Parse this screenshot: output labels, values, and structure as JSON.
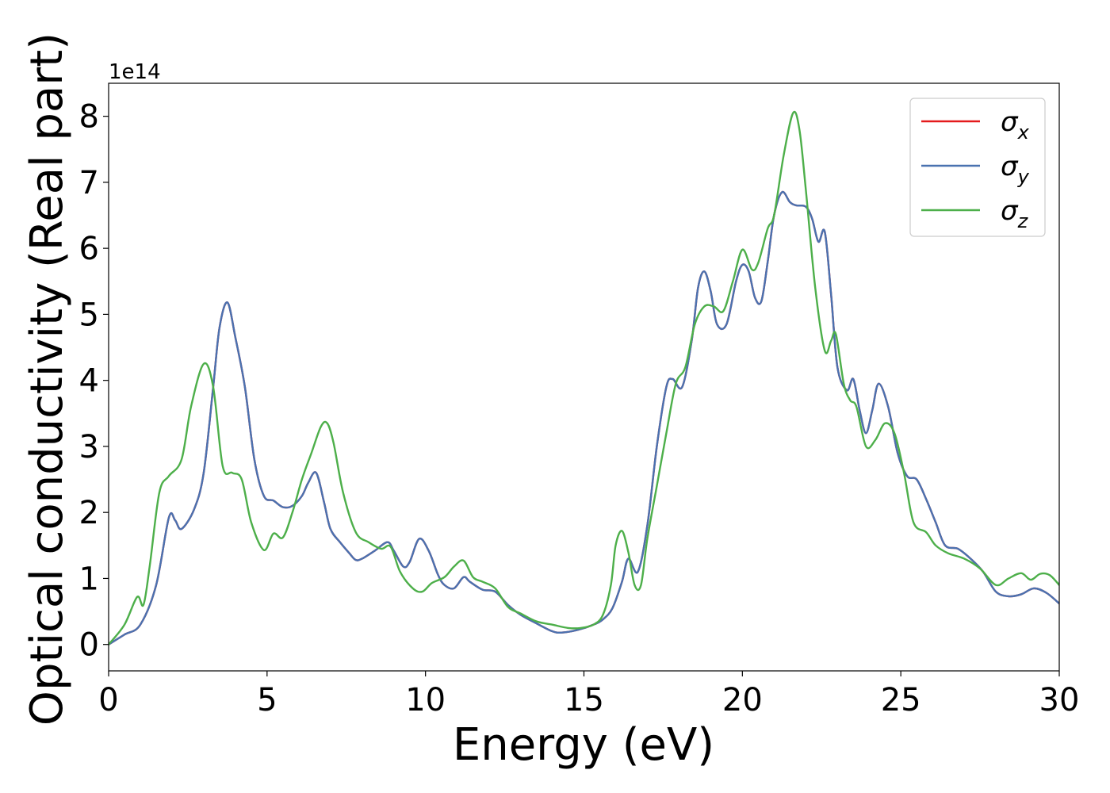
{
  "chart_data": {
    "type": "line",
    "xlabel": "Energy (eV)",
    "ylabel": "Optical conductivity (Real part)",
    "y_offset_text": "1e14",
    "y_multiplier": 100000000000000.0,
    "xlim": [
      0,
      30
    ],
    "ylim": [
      -0.4,
      8.5
    ],
    "x_ticks": [
      0,
      5,
      10,
      15,
      20,
      25,
      30
    ],
    "y_ticks": [
      0,
      1,
      2,
      3,
      4,
      5,
      6,
      7,
      8
    ],
    "grid": false,
    "legend_position": "top-right",
    "legend": [
      {
        "symbol": "σ",
        "sub": "x",
        "color": "#e41a1c"
      },
      {
        "symbol": "σ",
        "sub": "y",
        "color": "#4a72b0"
      },
      {
        "symbol": "σ",
        "sub": "z",
        "color": "#4daf4a"
      }
    ],
    "series": [
      {
        "name": "σx",
        "color": "#e41a1c",
        "x": [
          0,
          0.5,
          1.0,
          1.5,
          1.9,
          2.1,
          2.3,
          2.7,
          3.0,
          3.3,
          3.5,
          3.75,
          4.0,
          4.3,
          4.6,
          4.9,
          5.2,
          5.5,
          5.8,
          6.1,
          6.3,
          6.55,
          6.8,
          7.0,
          7.3,
          7.6,
          7.8,
          8.0,
          8.4,
          8.8,
          9.0,
          9.3,
          9.5,
          9.8,
          10.1,
          10.4,
          10.6,
          10.9,
          11.2,
          11.4,
          11.8,
          12.2,
          12.6,
          13.0,
          13.5,
          14.0,
          14.3,
          14.8,
          15.3,
          15.6,
          15.9,
          16.2,
          16.4,
          16.7,
          17.0,
          17.3,
          17.6,
          17.8,
          18.1,
          18.4,
          18.6,
          18.8,
          19.0,
          19.2,
          19.5,
          19.8,
          20.0,
          20.2,
          20.4,
          20.6,
          20.8,
          21.0,
          21.25,
          21.5,
          21.7,
          22.0,
          22.2,
          22.4,
          22.6,
          22.8,
          23.0,
          23.3,
          23.5,
          23.7,
          23.9,
          24.1,
          24.3,
          24.6,
          24.9,
          25.2,
          25.5,
          25.8,
          26.1,
          26.4,
          26.8,
          27.2,
          27.6,
          28.0,
          28.4,
          28.8,
          29.2,
          29.6,
          30.0
        ],
        "y": [
          0.0,
          0.15,
          0.3,
          0.9,
          1.92,
          1.88,
          1.75,
          2.05,
          2.6,
          3.9,
          4.8,
          5.18,
          4.65,
          3.9,
          2.8,
          2.25,
          2.18,
          2.08,
          2.1,
          2.25,
          2.45,
          2.6,
          2.15,
          1.75,
          1.55,
          1.38,
          1.28,
          1.3,
          1.42,
          1.55,
          1.42,
          1.18,
          1.25,
          1.6,
          1.42,
          1.05,
          0.9,
          0.85,
          1.02,
          0.95,
          0.83,
          0.8,
          0.6,
          0.45,
          0.32,
          0.2,
          0.18,
          0.22,
          0.3,
          0.38,
          0.55,
          0.95,
          1.3,
          1.1,
          1.8,
          3.0,
          3.9,
          4.02,
          3.9,
          4.6,
          5.4,
          5.65,
          5.35,
          4.85,
          4.85,
          5.5,
          5.75,
          5.65,
          5.25,
          5.2,
          5.8,
          6.5,
          6.85,
          6.7,
          6.65,
          6.63,
          6.45,
          6.1,
          6.25,
          5.3,
          4.2,
          3.85,
          4.02,
          3.55,
          3.2,
          3.55,
          3.95,
          3.6,
          2.9,
          2.55,
          2.5,
          2.2,
          1.85,
          1.5,
          1.45,
          1.3,
          1.1,
          0.8,
          0.73,
          0.76,
          0.85,
          0.78,
          0.62
        ]
      },
      {
        "name": "σy",
        "color": "#4a72b0",
        "x": [
          0,
          0.5,
          1.0,
          1.5,
          1.9,
          2.1,
          2.3,
          2.7,
          3.0,
          3.3,
          3.5,
          3.75,
          4.0,
          4.3,
          4.6,
          4.9,
          5.2,
          5.5,
          5.8,
          6.1,
          6.3,
          6.55,
          6.8,
          7.0,
          7.3,
          7.6,
          7.8,
          8.0,
          8.4,
          8.8,
          9.0,
          9.3,
          9.5,
          9.8,
          10.1,
          10.4,
          10.6,
          10.9,
          11.2,
          11.4,
          11.8,
          12.2,
          12.6,
          13.0,
          13.5,
          14.0,
          14.3,
          14.8,
          15.3,
          15.6,
          15.9,
          16.2,
          16.4,
          16.7,
          17.0,
          17.3,
          17.6,
          17.8,
          18.1,
          18.4,
          18.6,
          18.8,
          19.0,
          19.2,
          19.5,
          19.8,
          20.0,
          20.2,
          20.4,
          20.6,
          20.8,
          21.0,
          21.25,
          21.5,
          21.7,
          22.0,
          22.2,
          22.4,
          22.6,
          22.8,
          23.0,
          23.3,
          23.5,
          23.7,
          23.9,
          24.1,
          24.3,
          24.6,
          24.9,
          25.2,
          25.5,
          25.8,
          26.1,
          26.4,
          26.8,
          27.2,
          27.6,
          28.0,
          28.4,
          28.8,
          29.2,
          29.6,
          30.0
        ],
        "y": [
          0.0,
          0.15,
          0.3,
          0.9,
          1.92,
          1.88,
          1.75,
          2.05,
          2.6,
          3.9,
          4.8,
          5.18,
          4.65,
          3.9,
          2.8,
          2.25,
          2.18,
          2.08,
          2.1,
          2.25,
          2.45,
          2.6,
          2.15,
          1.75,
          1.55,
          1.38,
          1.28,
          1.3,
          1.42,
          1.55,
          1.42,
          1.18,
          1.25,
          1.6,
          1.42,
          1.05,
          0.9,
          0.85,
          1.02,
          0.95,
          0.83,
          0.8,
          0.6,
          0.45,
          0.32,
          0.2,
          0.18,
          0.22,
          0.3,
          0.38,
          0.55,
          0.95,
          1.3,
          1.1,
          1.8,
          3.0,
          3.9,
          4.02,
          3.9,
          4.6,
          5.4,
          5.65,
          5.35,
          4.85,
          4.85,
          5.5,
          5.75,
          5.65,
          5.25,
          5.2,
          5.8,
          6.5,
          6.85,
          6.7,
          6.65,
          6.63,
          6.45,
          6.1,
          6.25,
          5.3,
          4.2,
          3.85,
          4.02,
          3.55,
          3.2,
          3.55,
          3.95,
          3.6,
          2.9,
          2.55,
          2.5,
          2.2,
          1.85,
          1.5,
          1.45,
          1.3,
          1.1,
          0.8,
          0.73,
          0.76,
          0.85,
          0.78,
          0.62
        ]
      },
      {
        "name": "σz",
        "color": "#4daf4a",
        "x": [
          0,
          0.5,
          0.9,
          1.1,
          1.3,
          1.6,
          1.9,
          2.3,
          2.6,
          3.0,
          3.3,
          3.6,
          3.9,
          4.2,
          4.5,
          4.9,
          5.2,
          5.5,
          5.8,
          6.1,
          6.4,
          6.7,
          6.9,
          7.1,
          7.4,
          7.8,
          8.2,
          8.6,
          8.9,
          9.2,
          9.6,
          9.9,
          10.2,
          10.6,
          10.9,
          11.2,
          11.5,
          11.8,
          12.2,
          12.6,
          13.0,
          13.5,
          14.0,
          14.5,
          14.9,
          15.3,
          15.6,
          15.85,
          16.0,
          16.2,
          16.4,
          16.6,
          16.8,
          17.0,
          17.3,
          17.6,
          17.9,
          18.2,
          18.5,
          18.8,
          19.1,
          19.4,
          19.7,
          20.0,
          20.3,
          20.5,
          20.8,
          21.0,
          21.3,
          21.6,
          21.8,
          22.0,
          22.3,
          22.6,
          22.8,
          22.95,
          23.2,
          23.4,
          23.6,
          23.9,
          24.2,
          24.5,
          24.8,
          25.1,
          25.4,
          25.8,
          26.1,
          26.5,
          27.0,
          27.5,
          28.0,
          28.4,
          28.8,
          29.1,
          29.4,
          29.7,
          30.0
        ],
        "y": [
          0.0,
          0.3,
          0.72,
          0.6,
          1.2,
          2.3,
          2.55,
          2.8,
          3.6,
          4.25,
          3.9,
          2.7,
          2.6,
          2.5,
          1.85,
          1.43,
          1.68,
          1.62,
          2.0,
          2.5,
          2.9,
          3.3,
          3.35,
          3.05,
          2.3,
          1.7,
          1.55,
          1.45,
          1.48,
          1.1,
          0.85,
          0.8,
          0.93,
          1.02,
          1.18,
          1.27,
          1.02,
          0.95,
          0.85,
          0.57,
          0.47,
          0.35,
          0.3,
          0.25,
          0.25,
          0.3,
          0.45,
          0.9,
          1.5,
          1.72,
          1.4,
          0.9,
          0.9,
          1.6,
          2.4,
          3.2,
          3.95,
          4.2,
          4.85,
          5.12,
          5.12,
          5.05,
          5.5,
          5.98,
          5.68,
          5.78,
          6.3,
          6.5,
          7.4,
          8.05,
          7.8,
          6.9,
          5.4,
          4.45,
          4.6,
          4.7,
          3.95,
          3.7,
          3.6,
          3.0,
          3.1,
          3.35,
          3.2,
          2.6,
          1.85,
          1.7,
          1.5,
          1.38,
          1.3,
          1.15,
          0.9,
          1.0,
          1.08,
          0.98,
          1.07,
          1.05,
          0.9
        ]
      }
    ]
  }
}
